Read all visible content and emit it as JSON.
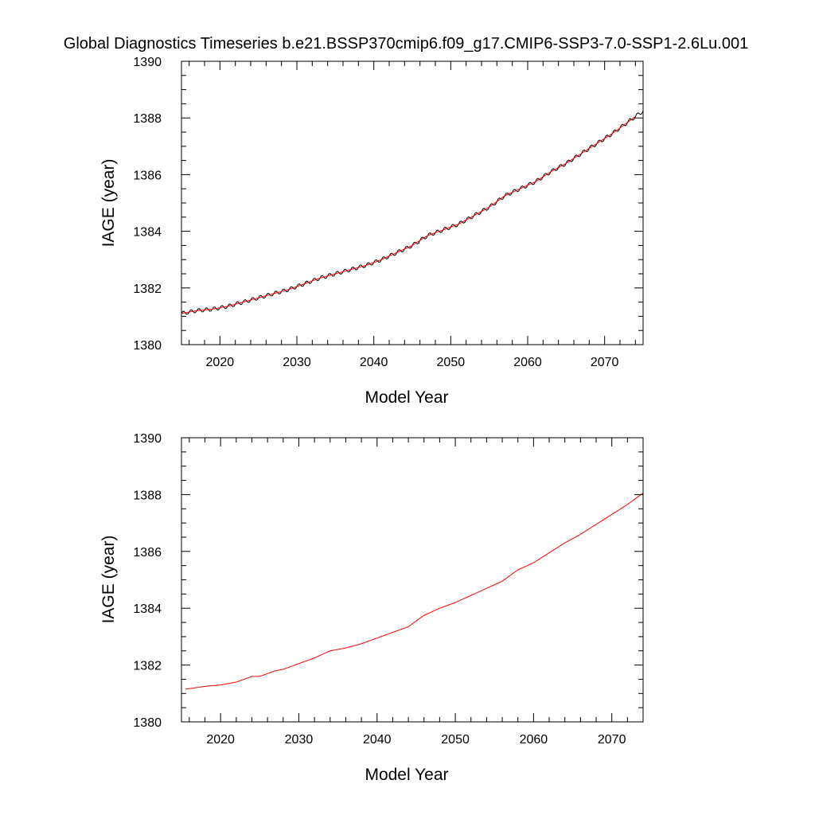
{
  "figure": {
    "title": "Global Diagnostics Timeseries b.e21.BSSP370cmip6.f09_g17.CMIP6-SSP3-7.0-SSP1-2.6Lu.001"
  },
  "chart_data": [
    {
      "type": "line",
      "panel": "top",
      "xlabel": "Model Year",
      "ylabel": "IAGE (year)",
      "xlim": [
        2015,
        2075
      ],
      "ylim": [
        1380,
        1390
      ],
      "xticks": [
        2020,
        2030,
        2040,
        2050,
        2060,
        2070
      ],
      "yticks": [
        1380,
        1382,
        1384,
        1386,
        1388,
        1390
      ],
      "grid": false,
      "series": [
        {
          "color": "#000000",
          "seasonal_cycle_amplitude": 0.07,
          "x": [
            2015,
            2017,
            2019,
            2021,
            2023,
            2025,
            2027,
            2029,
            2031,
            2033,
            2035,
            2037,
            2039,
            2041,
            2043,
            2045,
            2047,
            2049,
            2051,
            2053,
            2055,
            2057,
            2059,
            2061,
            2063,
            2065,
            2067,
            2069,
            2071,
            2073,
            2075
          ],
          "y": [
            1381.1,
            1381.2,
            1381.25,
            1381.35,
            1381.5,
            1381.65,
            1381.8,
            1381.95,
            1382.15,
            1382.35,
            1382.5,
            1382.65,
            1382.8,
            1383.0,
            1383.25,
            1383.5,
            1383.85,
            1384.05,
            1384.25,
            1384.55,
            1384.85,
            1385.25,
            1385.5,
            1385.75,
            1386.1,
            1386.4,
            1386.75,
            1387.1,
            1387.45,
            1387.85,
            1388.25
          ]
        },
        {
          "color": "#ff0000",
          "x": [
            2015,
            2017,
            2019,
            2021,
            2023,
            2025,
            2027,
            2029,
            2031,
            2033,
            2035,
            2037,
            2039,
            2041,
            2043,
            2045,
            2047,
            2049,
            2051,
            2053,
            2055,
            2057,
            2059,
            2061,
            2063,
            2065,
            2067,
            2069,
            2071,
            2073,
            2074
          ],
          "y": [
            1381.1,
            1381.2,
            1381.25,
            1381.35,
            1381.5,
            1381.65,
            1381.8,
            1381.95,
            1382.15,
            1382.35,
            1382.5,
            1382.65,
            1382.8,
            1383.0,
            1383.25,
            1383.5,
            1383.85,
            1384.05,
            1384.25,
            1384.55,
            1384.85,
            1385.25,
            1385.5,
            1385.75,
            1386.1,
            1386.4,
            1386.75,
            1387.1,
            1387.45,
            1387.85,
            1388.05
          ]
        }
      ]
    },
    {
      "type": "line",
      "panel": "bottom",
      "xlabel": "Model Year",
      "ylabel": "IAGE (year)",
      "xlim": [
        2015,
        2074
      ],
      "ylim": [
        1380,
        1390
      ],
      "xticks": [
        2020,
        2030,
        2040,
        2050,
        2060,
        2070
      ],
      "yticks": [
        1380,
        1382,
        1384,
        1386,
        1388,
        1390
      ],
      "grid": false,
      "series": [
        {
          "color": "#ff0000",
          "x": [
            2015.5,
            2018,
            2020,
            2022,
            2024,
            2025,
            2027,
            2028,
            2030,
            2032,
            2034,
            2036,
            2038,
            2040,
            2042,
            2044,
            2046,
            2048,
            2050,
            2052,
            2054,
            2056,
            2058,
            2060,
            2062,
            2064,
            2066,
            2068,
            2070,
            2072,
            2074
          ],
          "y": [
            1381.15,
            1381.25,
            1381.3,
            1381.4,
            1381.6,
            1381.6,
            1381.8,
            1381.85,
            1382.05,
            1382.25,
            1382.5,
            1382.6,
            1382.75,
            1382.95,
            1383.15,
            1383.35,
            1383.75,
            1384.0,
            1384.2,
            1384.45,
            1384.7,
            1384.95,
            1385.35,
            1385.6,
            1385.95,
            1386.3,
            1386.6,
            1386.95,
            1387.3,
            1387.65,
            1388.05
          ]
        }
      ]
    }
  ]
}
